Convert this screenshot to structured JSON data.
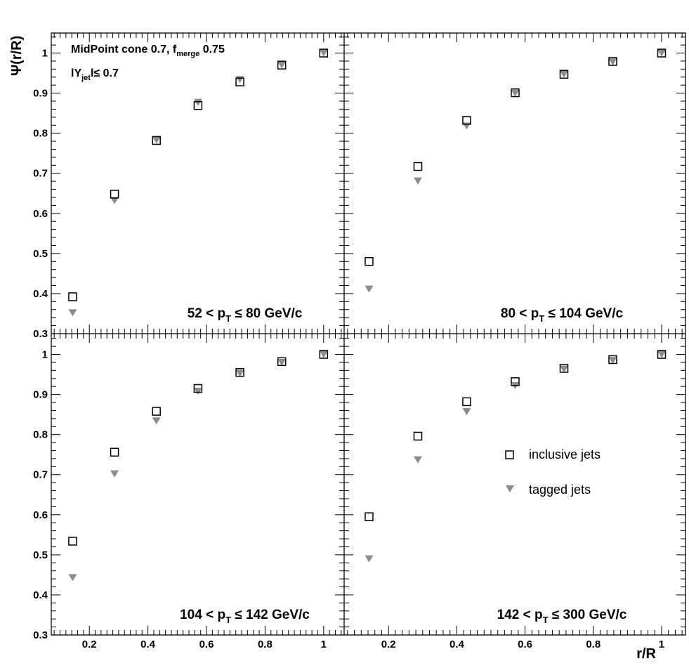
{
  "chart_data": {
    "type": "scatter",
    "ylabel": "Ψ(r/R)",
    "xlabel": "r/R",
    "ylim": [
      0.3,
      1.05
    ],
    "xlim": [
      0.07,
      1.07
    ],
    "x_ticks": [
      "0.2",
      "0.4",
      "0.6",
      "0.8",
      "1"
    ],
    "y_ticks": [
      "0.3",
      "0.4",
      "0.5",
      "0.6",
      "0.7",
      "0.8",
      "0.9",
      "1"
    ],
    "info": {
      "cone_label": "MidPoint cone 0.7, f",
      "cone_sub": "merge",
      "cone_value": " 0.75",
      "rap_prefix": "lY",
      "rap_sub": "jet",
      "rap_suffix": "l≤ 0.7"
    },
    "legend": {
      "inclusive": "inclusive jets",
      "tagged": "tagged jets"
    },
    "series_colors": {
      "inclusive": "#000000",
      "tagged": "#8c8c8c"
    },
    "x": [
      0.143,
      0.286,
      0.429,
      0.571,
      0.714,
      0.857,
      1.0
    ],
    "panels": [
      {
        "label_pre": "52 < p",
        "label_sub": "T",
        "label_post": " ≤ 80 GeV/c",
        "inclusive": [
          0.392,
          0.648,
          0.782,
          0.869,
          0.928,
          0.97,
          1.0
        ],
        "tagged": [
          0.352,
          0.632,
          0.783,
          0.877,
          0.934,
          0.97,
          1.0
        ]
      },
      {
        "label_pre": "80 < p",
        "label_sub": "T",
        "label_post": " ≤ 104 GeV/c",
        "inclusive": [
          0.48,
          0.717,
          0.832,
          0.901,
          0.947,
          0.979,
          1.0
        ],
        "tagged": [
          0.411,
          0.681,
          0.818,
          0.9,
          0.947,
          0.978,
          1.0
        ]
      },
      {
        "label_pre": "104 < p",
        "label_sub": "T",
        "label_post": " ≤ 142 GeV/c",
        "inclusive": [
          0.534,
          0.756,
          0.858,
          0.915,
          0.955,
          0.982,
          1.0
        ],
        "tagged": [
          0.443,
          0.702,
          0.834,
          0.908,
          0.953,
          0.98,
          1.0
        ]
      },
      {
        "label_pre": "142 < p",
        "label_sub": "T",
        "label_post": " ≤ 300 GeV/c",
        "inclusive": [
          0.595,
          0.796,
          0.882,
          0.932,
          0.965,
          0.987,
          1.0
        ],
        "tagged": [
          0.49,
          0.737,
          0.857,
          0.922,
          0.963,
          0.985,
          1.0
        ]
      }
    ]
  }
}
